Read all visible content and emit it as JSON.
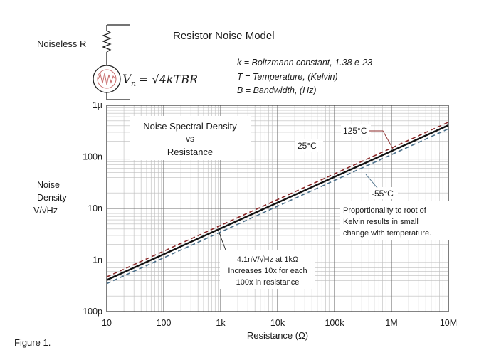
{
  "model": {
    "title": "Resistor Noise Model",
    "resistor_label": "Noiseless R",
    "equation_lhs": "V",
    "equation_sub": "n",
    "equation_rhs": "= √4kTBR",
    "definitions": [
      "k = Boltzmann constant,  1.38 e-23",
      "T = Temperature, (Kelvin)",
      "B = Bandwidth, (Hz)"
    ]
  },
  "figure_label": "Figure 1.",
  "chart_data": {
    "type": "line",
    "title_lines": [
      "Noise Spectral Density",
      "vs",
      "Resistance"
    ],
    "xlabel": "Resistance  (Ω)",
    "ylabel_lines": [
      "Noise",
      "Density",
      "V/√Hz"
    ],
    "xscale": "log",
    "yscale": "log",
    "xlim": [
      10,
      10000000
    ],
    "ylim": [
      1e-10,
      1e-06
    ],
    "grid": true,
    "x_ticks": [
      {
        "value": 10,
        "label": "10"
      },
      {
        "value": 100,
        "label": "100"
      },
      {
        "value": 1000,
        "label": "1k"
      },
      {
        "value": 10000,
        "label": "10k"
      },
      {
        "value": 100000,
        "label": "100k"
      },
      {
        "value": 1000000,
        "label": "1M"
      },
      {
        "value": 10000000,
        "label": "10M"
      }
    ],
    "y_ticks": [
      {
        "value": 1e-10,
        "label": "100p"
      },
      {
        "value": 1e-09,
        "label": "1n"
      },
      {
        "value": 1e-08,
        "label": "10n"
      },
      {
        "value": 1e-07,
        "label": "100n"
      },
      {
        "value": 1e-06,
        "label": "1µ"
      }
    ],
    "series": [
      {
        "name": "125°C",
        "color": "#8b2a2a",
        "dash": true,
        "x": [
          10,
          10000000
        ],
        "y": [
          4.7e-10,
          4.7e-07
        ]
      },
      {
        "name": "25°C",
        "color": "#111111",
        "dash": false,
        "x": [
          10,
          10000000
        ],
        "y": [
          4.1e-10,
          4.1e-07
        ]
      },
      {
        "name": "-55°C",
        "color": "#4a6f8a",
        "dash": true,
        "x": [
          10,
          10000000
        ],
        "y": [
          3.5e-10,
          3.5e-07
        ]
      }
    ],
    "annotations": {
      "callout_1k": [
        "4.1nV/√Hz at 1kΩ",
        "Increases 10x for each",
        "100x in resistance"
      ],
      "proportionality": [
        "Proportionality to root of",
        "Kelvin results in small",
        "change with temperature."
      ]
    }
  }
}
